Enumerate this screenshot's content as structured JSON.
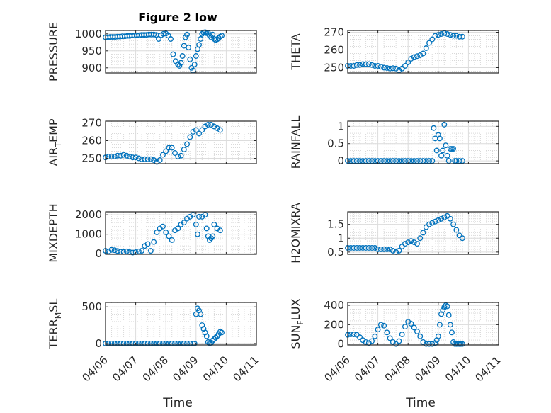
{
  "title": "Figure 2 low",
  "marker_color": "#0072BD",
  "x_tick_labels": [
    "04/06",
    "04/07",
    "04/08",
    "04/09",
    "04/10",
    "04/11"
  ],
  "x_label": "Time",
  "chart_data": [
    {
      "type": "scatter",
      "ylabel_main": "PRESSURE",
      "ylabel_sub": "",
      "ylim": [
        885,
        1010
      ],
      "yticks": [
        900,
        950,
        1000
      ],
      "grid": true,
      "x": [
        0.0,
        0.08,
        0.16,
        0.24,
        0.32,
        0.4,
        0.48,
        0.56,
        0.64,
        0.72,
        0.8,
        0.88,
        0.96,
        1.04,
        1.12,
        1.2,
        1.28,
        1.36,
        1.44,
        1.52,
        1.6,
        1.68,
        1.76,
        1.84,
        1.92,
        2.0,
        2.08,
        2.16,
        2.24,
        2.32,
        2.4,
        2.45,
        2.5,
        2.55,
        2.6,
        2.65,
        2.7,
        2.75,
        2.8,
        2.85,
        2.9,
        2.95,
        3.0,
        3.05,
        3.1,
        3.15,
        3.2,
        3.25,
        3.3,
        3.35,
        3.4,
        3.45,
        3.5,
        3.55,
        3.6,
        3.65,
        3.7,
        3.75,
        3.8,
        3.85
      ],
      "y": [
        990,
        990,
        991,
        991,
        991,
        992,
        992,
        993,
        993,
        994,
        994,
        995,
        995,
        996,
        996,
        997,
        997,
        997,
        998,
        998,
        998,
        997,
        985,
        996,
        1000,
        1001,
        995,
        985,
        940,
        920,
        910,
        906,
        915,
        935,
        965,
        990,
        998,
        960,
        925,
        900,
        892,
        910,
        935,
        955,
        968,
        985,
        1000,
        1004,
        1005,
        1002,
        1003,
        995,
        990,
        998,
        985,
        982,
        984,
        988,
        992,
        995
      ]
    },
    {
      "type": "scatter",
      "ylabel_main": "THETA",
      "ylabel_sub": "",
      "ylim": [
        247,
        271
      ],
      "yticks": [
        250,
        260,
        270
      ],
      "grid": true,
      "x": [
        0.0,
        0.1,
        0.2,
        0.3,
        0.4,
        0.5,
        0.6,
        0.7,
        0.8,
        0.9,
        1.0,
        1.1,
        1.2,
        1.3,
        1.4,
        1.5,
        1.6,
        1.7,
        1.8,
        1.9,
        2.0,
        2.1,
        2.2,
        2.3,
        2.4,
        2.5,
        2.6,
        2.7,
        2.8,
        2.9,
        3.0,
        3.1,
        3.2,
        3.3,
        3.4,
        3.5,
        3.6,
        3.7,
        3.8
      ],
      "y": [
        251,
        251,
        251,
        251.5,
        251.5,
        252,
        252,
        252,
        251.5,
        251,
        251,
        250.5,
        250,
        249.8,
        249.5,
        249.7,
        249.5,
        248.5,
        249.5,
        251,
        253,
        255,
        256,
        256.5,
        257,
        258,
        261,
        264,
        266,
        268,
        268.5,
        269,
        269.5,
        269,
        268.5,
        268,
        268,
        267.5,
        267.5
      ]
    },
    {
      "type": "scatter",
      "ylabel_main": "AIR",
      "ylabel_sub": "T",
      "ylabel_suffix": "EMP",
      "ylim": [
        247,
        271
      ],
      "yticks": [
        250,
        260,
        270
      ],
      "grid": true,
      "x": [
        0.0,
        0.1,
        0.2,
        0.3,
        0.4,
        0.5,
        0.6,
        0.7,
        0.8,
        0.9,
        1.0,
        1.1,
        1.2,
        1.3,
        1.4,
        1.5,
        1.6,
        1.7,
        1.8,
        1.9,
        2.0,
        2.1,
        2.2,
        2.3,
        2.4,
        2.5,
        2.6,
        2.7,
        2.8,
        2.9,
        3.0,
        3.1,
        3.2,
        3.3,
        3.4,
        3.5,
        3.6,
        3.7,
        3.8
      ],
      "y": [
        250.5,
        251,
        251,
        251,
        251.5,
        251.5,
        252,
        251.5,
        251,
        250.5,
        250.5,
        250,
        249.5,
        249.5,
        249.5,
        249.5,
        249,
        248,
        249,
        252,
        254,
        256,
        256,
        253,
        251,
        251.5,
        255,
        258,
        262,
        265,
        266,
        264,
        266,
        268,
        269,
        269,
        268,
        267,
        266
      ]
    },
    {
      "type": "scatter",
      "ylabel_main": "RAINFALL",
      "ylabel_sub": "",
      "ylim": [
        -0.08,
        1.15
      ],
      "yticks": [
        0,
        0.5,
        1
      ],
      "grid": true,
      "x": [
        0.0,
        0.1,
        0.2,
        0.3,
        0.4,
        0.5,
        0.6,
        0.7,
        0.8,
        0.9,
        1.0,
        1.1,
        1.2,
        1.3,
        1.4,
        1.5,
        1.6,
        1.7,
        1.8,
        1.9,
        2.0,
        2.1,
        2.2,
        2.3,
        2.4,
        2.5,
        2.6,
        2.7,
        2.8,
        2.85,
        2.9,
        2.95,
        3.0,
        3.05,
        3.1,
        3.15,
        3.2,
        3.25,
        3.3,
        3.35,
        3.4,
        3.45,
        3.5,
        3.55,
        3.6,
        3.7,
        3.8
      ],
      "y": [
        0,
        0,
        0,
        0,
        0,
        0,
        0,
        0,
        0,
        0,
        0,
        0,
        0,
        0,
        0,
        0,
        0,
        0,
        0,
        0,
        0,
        0,
        0,
        0,
        0,
        0,
        0,
        0,
        0,
        0.95,
        0.65,
        0.3,
        0.75,
        0.65,
        0.15,
        0.3,
        1.05,
        0.45,
        0.15,
        0,
        0.35,
        0.35,
        0.35,
        0,
        0,
        0,
        0
      ]
    },
    {
      "type": "scatter",
      "ylabel_main": "MIXDEPTH",
      "ylabel_sub": "",
      "ylim": [
        -30,
        2150
      ],
      "yticks": [
        0,
        1000,
        2000
      ],
      "grid": true,
      "x": [
        0.0,
        0.1,
        0.2,
        0.3,
        0.4,
        0.5,
        0.6,
        0.7,
        0.8,
        0.9,
        1.0,
        1.1,
        1.2,
        1.3,
        1.4,
        1.5,
        1.6,
        1.7,
        1.8,
        1.9,
        2.0,
        2.1,
        2.2,
        2.3,
        2.4,
        2.5,
        2.6,
        2.7,
        2.8,
        2.9,
        3.0,
        3.05,
        3.1,
        3.2,
        3.3,
        3.35,
        3.4,
        3.45,
        3.5,
        3.55,
        3.6,
        3.7,
        3.8
      ],
      "y": [
        150,
        120,
        200,
        180,
        140,
        100,
        90,
        120,
        80,
        60,
        80,
        120,
        150,
        400,
        500,
        150,
        600,
        1100,
        1300,
        1400,
        1100,
        900,
        700,
        1200,
        1300,
        1500,
        1600,
        1800,
        1900,
        2000,
        1500,
        1000,
        1900,
        1900,
        2000,
        1300,
        900,
        700,
        800,
        900,
        1500,
        1300,
        1200
      ]
    },
    {
      "type": "scatter",
      "ylabel_main": "H2OMIXRA",
      "ylabel_sub": "",
      "ylim": [
        0.42,
        1.95
      ],
      "yticks": [
        0.5,
        1,
        1.5
      ],
      "grid": true,
      "x": [
        0.0,
        0.1,
        0.2,
        0.3,
        0.4,
        0.5,
        0.6,
        0.7,
        0.8,
        0.9,
        1.0,
        1.1,
        1.2,
        1.3,
        1.4,
        1.5,
        1.6,
        1.7,
        1.8,
        1.9,
        2.0,
        2.1,
        2.2,
        2.3,
        2.4,
        2.5,
        2.6,
        2.7,
        2.8,
        2.9,
        3.0,
        3.1,
        3.2,
        3.3,
        3.4,
        3.5,
        3.6,
        3.7,
        3.8
      ],
      "y": [
        0.65,
        0.65,
        0.65,
        0.65,
        0.65,
        0.65,
        0.65,
        0.65,
        0.65,
        0.65,
        0.6,
        0.6,
        0.6,
        0.6,
        0.6,
        0.55,
        0.5,
        0.55,
        0.7,
        0.8,
        0.85,
        0.9,
        0.85,
        0.8,
        1.0,
        1.2,
        1.4,
        1.5,
        1.55,
        1.6,
        1.65,
        1.7,
        1.75,
        1.8,
        1.7,
        1.5,
        1.3,
        1.1,
        1.0
      ]
    },
    {
      "type": "scatter",
      "ylabel_main": "TERR",
      "ylabel_sub": "M",
      "ylabel_suffix": "SL",
      "ylim": [
        -20,
        560
      ],
      "yticks": [
        0,
        500
      ],
      "grid": true,
      "x": [
        0.0,
        0.1,
        0.2,
        0.3,
        0.4,
        0.5,
        0.6,
        0.7,
        0.8,
        0.9,
        1.0,
        1.1,
        1.2,
        1.3,
        1.4,
        1.5,
        1.6,
        1.7,
        1.8,
        1.9,
        2.0,
        2.1,
        2.2,
        2.3,
        2.4,
        2.5,
        2.6,
        2.7,
        2.8,
        2.9,
        2.95,
        3.0,
        3.05,
        3.1,
        3.15,
        3.2,
        3.25,
        3.3,
        3.35,
        3.4,
        3.45,
        3.5,
        3.55,
        3.6,
        3.65,
        3.7,
        3.75,
        3.8,
        3.85
      ],
      "y": [
        0,
        0,
        0,
        0,
        0,
        0,
        0,
        0,
        0,
        0,
        0,
        0,
        0,
        0,
        0,
        0,
        0,
        0,
        0,
        0,
        0,
        0,
        0,
        0,
        0,
        0,
        0,
        0,
        0,
        0,
        0,
        400,
        480,
        450,
        400,
        250,
        200,
        150,
        100,
        20,
        5,
        10,
        40,
        60,
        80,
        100,
        130,
        160,
        150
      ]
    },
    {
      "type": "scatter",
      "ylabel_main": "SUN",
      "ylabel_sub": "F",
      "ylabel_suffix": "LUX",
      "ylim": [
        -10,
        430
      ],
      "yticks": [
        0,
        200,
        400
      ],
      "grid": true,
      "x": [
        0.0,
        0.1,
        0.2,
        0.3,
        0.4,
        0.5,
        0.6,
        0.7,
        0.8,
        0.9,
        1.0,
        1.1,
        1.2,
        1.3,
        1.4,
        1.5,
        1.6,
        1.7,
        1.8,
        1.9,
        2.0,
        2.1,
        2.2,
        2.3,
        2.4,
        2.5,
        2.6,
        2.7,
        2.8,
        2.9,
        2.95,
        3.0,
        3.05,
        3.1,
        3.15,
        3.2,
        3.25,
        3.3,
        3.35,
        3.4,
        3.45,
        3.5,
        3.55,
        3.6,
        3.65,
        3.7,
        3.75,
        3.8
      ],
      "y": [
        95,
        100,
        100,
        95,
        70,
        40,
        20,
        10,
        30,
        80,
        150,
        200,
        190,
        120,
        60,
        20,
        0,
        30,
        100,
        180,
        230,
        210,
        170,
        130,
        80,
        20,
        0,
        0,
        0,
        10,
        40,
        80,
        200,
        310,
        350,
        380,
        400,
        390,
        300,
        200,
        120,
        20,
        0,
        0,
        0,
        0,
        0,
        0
      ]
    }
  ]
}
